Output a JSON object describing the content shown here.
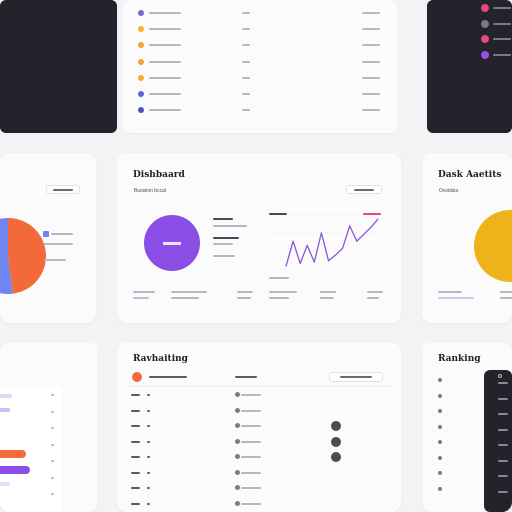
{
  "panels": {
    "mid": {
      "title": "Dishbaard",
      "subtitle": "Bussiion bccal"
    },
    "right_mid": {
      "title": "Dask Aaetits",
      "subtitle": "Ovsidsia"
    },
    "bottom": {
      "title": "Ravhaiting"
    },
    "bottom_right": {
      "title": "Ranking"
    }
  },
  "colors": {
    "purple": "#8a4ee6",
    "orange": "#f26a3a",
    "blue": "#6f86f0",
    "amber": "#f2b320",
    "pink": "#e83f6f",
    "dark": "#22232b"
  },
  "top_list": {
    "dot_colors": [
      "#6a6fd6",
      "#f2b62a",
      "#e8a73a",
      "#e8a73a",
      "#f0b12a",
      "#5a63d0",
      "#4b52c4"
    ]
  },
  "top_right_dark": {
    "dot_colors": [
      "#e8457b",
      "#7a7a86",
      "#e84a7e",
      "#9a4fe3"
    ]
  },
  "chart_data": [
    {
      "type": "pie",
      "values": [
        48,
        52
      ],
      "colors": [
        "#f26a3a",
        "#6f86f0"
      ]
    },
    {
      "type": "pie",
      "values": [
        1
      ],
      "colors": [
        "#8a4ee6"
      ]
    },
    {
      "type": "line",
      "color": "#8a55d6",
      "values": [
        2,
        20,
        4,
        17,
        5,
        26,
        6,
        10,
        15,
        31,
        20,
        25,
        30,
        36
      ]
    },
    {
      "type": "pie",
      "values": [
        1
      ],
      "colors": [
        "#f0b21a"
      ]
    }
  ],
  "bottom_list": {
    "circle_rows": [
      false,
      false,
      true,
      true,
      true,
      false,
      false,
      false
    ]
  }
}
